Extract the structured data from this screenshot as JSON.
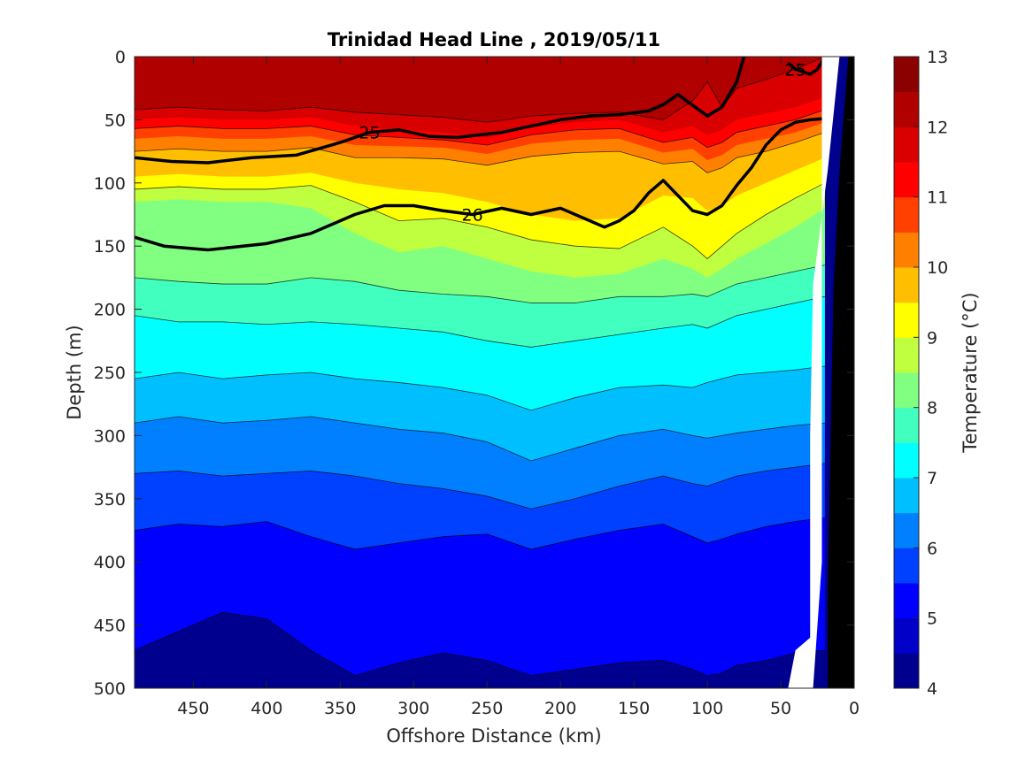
{
  "chart_data": {
    "type": "contour",
    "title": "Trinidad Head Line , 2019/05/11",
    "xlabel": "Offshore Distance (km)",
    "ylabel": "Depth (m)",
    "colorbar_label": "Temperature (°C)",
    "xlim": [
      490,
      0
    ],
    "ylim": [
      0,
      500
    ],
    "x_reversed": true,
    "y_reversed": true,
    "x_ticks": [
      450,
      400,
      350,
      300,
      250,
      200,
      150,
      100,
      50,
      0
    ],
    "y_ticks": [
      0,
      50,
      100,
      150,
      200,
      250,
      300,
      350,
      400,
      450,
      500
    ],
    "colorbar": {
      "min": 4,
      "max": 13,
      "step": 0.5,
      "ticks": [
        4,
        5,
        6,
        7,
        8,
        9,
        10,
        11,
        12,
        13
      ],
      "colors": [
        "#00008f",
        "#0000c8",
        "#0000ff",
        "#0040ff",
        "#0080ff",
        "#00bfff",
        "#00ffff",
        "#40ffbf",
        "#80ff80",
        "#bfff40",
        "#ffff00",
        "#ffbf00",
        "#ff8000",
        "#ff4000",
        "#ff0000",
        "#d80000",
        "#b00000",
        "#8b0000"
      ]
    },
    "temperature_isotherms": [
      {
        "t": 12.0,
        "x": [
          490,
          460,
          430,
          400,
          370,
          340,
          310,
          280,
          250,
          220,
          190,
          160,
          130,
          110,
          100,
          90,
          80,
          60,
          40,
          20
        ],
        "depth": [
          42,
          40,
          42,
          43,
          40,
          44,
          46,
          48,
          52,
          47,
          45,
          44,
          50,
          35,
          20,
          40,
          25,
          18,
          10,
          0
        ]
      },
      {
        "t": 11.5,
        "x": [
          490,
          460,
          430,
          400,
          370,
          340,
          310,
          280,
          250,
          220,
          190,
          160,
          130,
          110,
          100,
          90,
          80,
          60,
          40,
          20
        ],
        "depth": [
          50,
          48,
          50,
          50,
          48,
          55,
          58,
          60,
          64,
          56,
          52,
          50,
          60,
          55,
          62,
          58,
          50,
          45,
          40,
          32
        ]
      },
      {
        "t": 11.0,
        "x": [
          490,
          460,
          430,
          400,
          370,
          340,
          310,
          280,
          250,
          220,
          190,
          160,
          130,
          110,
          100,
          90,
          80,
          60,
          40,
          20
        ],
        "depth": [
          57,
          55,
          57,
          57,
          55,
          62,
          64,
          66,
          70,
          62,
          58,
          57,
          68,
          64,
          72,
          68,
          60,
          55,
          50,
          42
        ]
      },
      {
        "t": 10.5,
        "x": [
          490,
          460,
          430,
          400,
          370,
          340,
          310,
          280,
          250,
          220,
          190,
          160,
          130,
          110,
          100,
          90,
          80,
          60,
          40,
          20
        ],
        "depth": [
          65,
          63,
          65,
          65,
          63,
          70,
          71,
          72,
          77,
          69,
          66,
          65,
          76,
          73,
          82,
          78,
          70,
          65,
          60,
          52
        ]
      },
      {
        "t": 10.0,
        "x": [
          490,
          460,
          430,
          400,
          370,
          340,
          310,
          280,
          250,
          220,
          190,
          160,
          130,
          110,
          100,
          90,
          80,
          60,
          40,
          20
        ],
        "depth": [
          75,
          73,
          75,
          75,
          72,
          80,
          80,
          81,
          86,
          79,
          76,
          75,
          85,
          83,
          92,
          88,
          80,
          75,
          68,
          60
        ]
      },
      {
        "t": 9.5,
        "x": [
          490,
          460,
          430,
          400,
          370,
          340,
          310,
          280,
          250,
          220,
          190,
          160,
          130,
          110,
          100,
          90,
          80,
          60,
          40,
          20
        ],
        "depth": [
          95,
          93,
          95,
          95,
          92,
          100,
          105,
          108,
          115,
          125,
          130,
          128,
          110,
          112,
          122,
          118,
          110,
          100,
          90,
          80
        ]
      },
      {
        "t": 9.0,
        "x": [
          490,
          460,
          430,
          400,
          370,
          340,
          310,
          280,
          250,
          220,
          190,
          160,
          130,
          110,
          100,
          90,
          80,
          60,
          40,
          20
        ],
        "depth": [
          105,
          103,
          105,
          105,
          102,
          115,
          130,
          128,
          135,
          145,
          150,
          152,
          135,
          150,
          160,
          150,
          140,
          125,
          112,
          100
        ]
      },
      {
        "t": 8.5,
        "x": [
          490,
          460,
          430,
          400,
          370,
          340,
          310,
          280,
          250,
          220,
          190,
          160,
          130,
          110,
          100,
          90,
          80,
          60,
          40,
          20
        ],
        "depth": [
          115,
          113,
          115,
          115,
          120,
          140,
          155,
          150,
          160,
          170,
          175,
          172,
          160,
          168,
          175,
          168,
          160,
          148,
          135,
          120
        ]
      },
      {
        "t": 8.0,
        "x": [
          490,
          460,
          430,
          400,
          370,
          340,
          310,
          280,
          250,
          220,
          190,
          160,
          130,
          110,
          100,
          90,
          80,
          60,
          40,
          20
        ],
        "depth": [
          175,
          178,
          180,
          180,
          175,
          178,
          185,
          188,
          190,
          195,
          195,
          190,
          190,
          188,
          190,
          185,
          180,
          175,
          170,
          165
        ]
      },
      {
        "t": 7.5,
        "x": [
          490,
          460,
          430,
          400,
          370,
          340,
          310,
          280,
          250,
          220,
          190,
          160,
          130,
          110,
          100,
          90,
          80,
          60,
          40,
          20
        ],
        "depth": [
          205,
          210,
          210,
          212,
          210,
          212,
          215,
          218,
          225,
          230,
          225,
          220,
          215,
          212,
          215,
          210,
          205,
          200,
          195,
          190
        ]
      },
      {
        "t": 7.0,
        "x": [
          490,
          460,
          430,
          400,
          370,
          340,
          310,
          280,
          250,
          220,
          190,
          160,
          130,
          110,
          100,
          90,
          80,
          60,
          40,
          20
        ],
        "depth": [
          255,
          250,
          255,
          252,
          250,
          255,
          258,
          262,
          268,
          280,
          270,
          262,
          260,
          262,
          258,
          255,
          252,
          250,
          248,
          245
        ]
      },
      {
        "t": 6.5,
        "x": [
          490,
          460,
          430,
          400,
          370,
          340,
          310,
          280,
          250,
          220,
          190,
          160,
          130,
          110,
          100,
          90,
          80,
          60,
          40,
          20
        ],
        "depth": [
          290,
          285,
          290,
          288,
          285,
          290,
          295,
          298,
          305,
          320,
          310,
          300,
          295,
          300,
          302,
          300,
          298,
          295,
          292,
          290
        ]
      },
      {
        "t": 6.0,
        "x": [
          490,
          460,
          430,
          400,
          370,
          340,
          310,
          280,
          250,
          220,
          190,
          160,
          130,
          110,
          100,
          90,
          80,
          60,
          40,
          20
        ],
        "depth": [
          330,
          328,
          332,
          330,
          328,
          332,
          338,
          342,
          348,
          358,
          350,
          340,
          332,
          338,
          340,
          336,
          332,
          328,
          325,
          322
        ]
      },
      {
        "t": 5.5,
        "x": [
          490,
          460,
          430,
          400,
          370,
          340,
          310,
          280,
          250,
          220,
          190,
          160,
          130,
          110,
          100,
          90,
          80,
          60,
          40,
          20
        ],
        "depth": [
          375,
          370,
          372,
          368,
          380,
          390,
          385,
          380,
          378,
          390,
          382,
          375,
          370,
          380,
          385,
          382,
          378,
          372,
          368,
          365
        ]
      },
      {
        "t": 5.0,
        "x": [
          490,
          460,
          430,
          400,
          370,
          340,
          310,
          280,
          250,
          220,
          190,
          160,
          130,
          110,
          100,
          90,
          80,
          60,
          40,
          20
        ],
        "depth": [
          470,
          455,
          440,
          445,
          470,
          490,
          480,
          472,
          478,
          490,
          485,
          480,
          478,
          485,
          490,
          488,
          482,
          478,
          472,
          470
        ]
      }
    ],
    "density_contours": [
      {
        "sigma": "25",
        "labeled": true,
        "x": [
          490,
          465,
          440,
          410,
          380,
          350,
          330,
          310,
          290,
          270,
          240,
          220,
          200,
          180,
          160,
          140,
          130,
          120,
          100,
          90,
          80,
          75
        ],
        "depth": [
          80,
          83,
          84,
          80,
          78,
          68,
          60,
          58,
          63,
          64,
          60,
          55,
          50,
          47,
          46,
          43,
          38,
          30,
          47,
          40,
          20,
          0
        ]
      },
      {
        "sigma": "25",
        "labeled": true,
        "x": [
          45,
          40,
          35,
          30,
          25,
          20
        ],
        "depth": [
          5,
          10,
          12,
          14,
          10,
          0
        ]
      },
      {
        "sigma": "26",
        "labeled": true,
        "x": [
          490,
          470,
          440,
          400,
          370,
          340,
          320,
          300,
          280,
          260,
          240,
          220,
          200,
          180,
          170,
          160,
          150,
          140,
          130,
          120,
          110,
          100,
          90,
          80,
          70,
          60,
          50,
          40,
          30,
          20
        ],
        "depth": [
          143,
          150,
          153,
          148,
          140,
          125,
          118,
          118,
          122,
          125,
          120,
          125,
          120,
          130,
          135,
          130,
          122,
          108,
          98,
          110,
          122,
          125,
          118,
          102,
          88,
          70,
          58,
          52,
          50,
          49
        ]
      }
    ],
    "legend": "colorbar-right"
  }
}
